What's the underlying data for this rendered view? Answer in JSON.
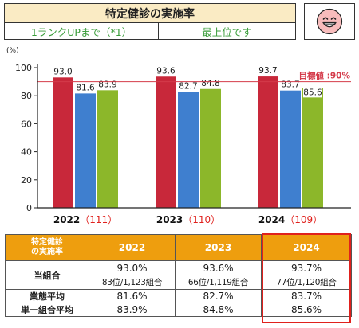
{
  "header": {
    "title": "特定健診の実施率",
    "rank_up": "1ランクUPまで（*1）",
    "status": "最上位です",
    "face_icon": "smiley-face-icon"
  },
  "colors": {
    "bar_own": "#c8283a",
    "bar_business": "#3f7fcf",
    "bar_single": "#8cb72a",
    "target_line": "#d43b4a",
    "header_bg": "#faebc4",
    "table_header": "#ee9e0e",
    "highlight_box": "#e0211d",
    "green_text": "#3a9d3a"
  },
  "chart_data": {
    "type": "bar",
    "unit_label": "(%)",
    "categories": [
      "2022",
      "2023",
      "2024"
    ],
    "category_suffixes": [
      "（111）",
      "（110）",
      "（109）"
    ],
    "series": [
      {
        "key": "own",
        "values": [
          93.0,
          93.6,
          93.7
        ],
        "labels": [
          "93.0",
          "93.6",
          "93.7"
        ]
      },
      {
        "key": "business",
        "values": [
          81.6,
          82.7,
          83.7
        ],
        "labels": [
          "81.6",
          "82.7",
          "83.7"
        ]
      },
      {
        "key": "single",
        "values": [
          83.9,
          84.8,
          85.6
        ],
        "labels": [
          "83.9",
          "84.8",
          "85.6"
        ]
      }
    ],
    "target": {
      "value": 90,
      "label": "目標値 :90%"
    },
    "ylim": [
      0,
      100
    ],
    "yticks": [
      0,
      20,
      40,
      60,
      80,
      100
    ],
    "grid": false
  },
  "table": {
    "corner": [
      "特定健診",
      "の実施率"
    ],
    "years": [
      "2022",
      "2023",
      "2024"
    ],
    "rows": [
      {
        "label": "当組合",
        "values": [
          "93.0%",
          "93.6%",
          "93.7%"
        ],
        "ranks": [
          "83位/1,123組合",
          "66位/1,119組合",
          "77位/1,120組合"
        ]
      },
      {
        "label": "業態平均",
        "values": [
          "81.6%",
          "82.7%",
          "83.7%"
        ]
      },
      {
        "label": "単一組合平均",
        "values": [
          "83.9%",
          "84.8%",
          "85.6%"
        ]
      }
    ]
  }
}
